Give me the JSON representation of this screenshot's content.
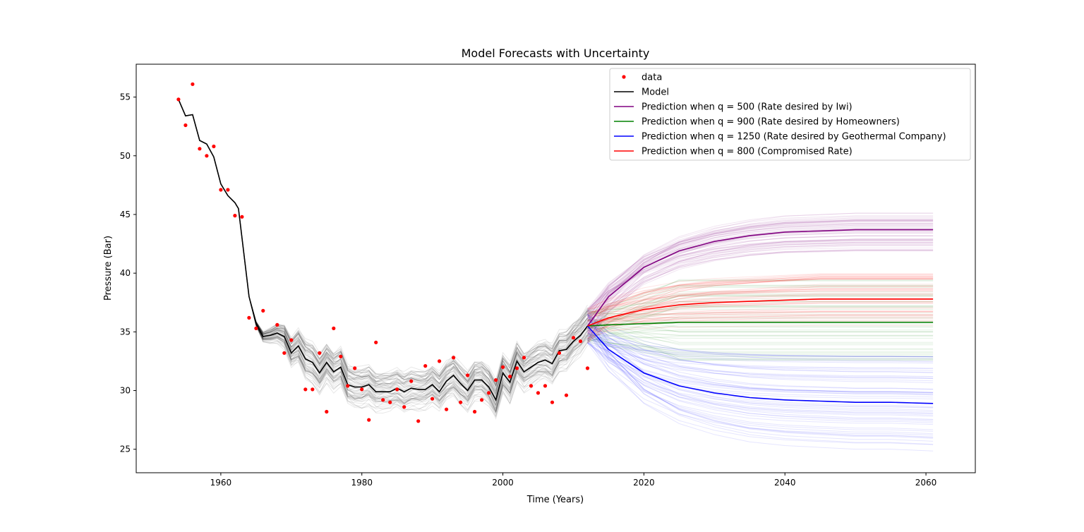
{
  "chart_data": {
    "type": "line",
    "title": "Model Forecasts with Uncertainty",
    "xlabel": "Time (Years)",
    "ylabel": "Pressure (Bar)",
    "xlim": [
      1948,
      2067
    ],
    "ylim": [
      23,
      57.8
    ],
    "x_ticks": [
      1960,
      1980,
      2000,
      2020,
      2040,
      2060
    ],
    "y_ticks": [
      25,
      30,
      35,
      40,
      45,
      50,
      55
    ],
    "grid": false,
    "legend_position": "top-right",
    "legend": [
      {
        "label": "data",
        "color": "#ff0000",
        "marker": "dot"
      },
      {
        "label": "Model",
        "color": "#000000",
        "marker": "line"
      },
      {
        "label": "Prediction when q = 500 (Rate desired by Iwi)",
        "color": "#800080",
        "marker": "line"
      },
      {
        "label": "Prediction when q = 900 (Rate desired by Homeowners)",
        "color": "#008000",
        "marker": "line"
      },
      {
        "label": "Prediction when q = 1250 (Rate desired by Geothermal Company)",
        "color": "#0000ff",
        "marker": "line"
      },
      {
        "label": "Prediction when q = 800 (Compromised Rate)",
        "color": "#ff0000",
        "marker": "line"
      }
    ],
    "data_points": {
      "name": "data",
      "color": "#ff0000",
      "x": [
        1954,
        1955,
        1956,
        1957,
        1958,
        1959,
        1960,
        1961,
        1962,
        1963,
        1964,
        1965,
        1966,
        1968,
        1969,
        1970,
        1972,
        1973,
        1974,
        1975,
        1976,
        1977,
        1978,
        1979,
        1980,
        1981,
        1982,
        1983,
        1984,
        1985,
        1986,
        1987,
        1988,
        1989,
        1990,
        1991,
        1992,
        1993,
        1994,
        1995,
        1996,
        1997,
        1998,
        1999,
        2000,
        2001,
        2002,
        2003,
        2004,
        2005,
        2006,
        2007,
        2008,
        2009,
        2010,
        2011,
        2012
      ],
      "y": [
        54.8,
        52.6,
        56.1,
        50.6,
        50.0,
        50.8,
        47.1,
        47.1,
        44.9,
        44.8,
        36.2,
        35.3,
        36.8,
        35.6,
        33.2,
        34.3,
        30.1,
        30.1,
        33.2,
        28.2,
        35.3,
        32.9,
        30.4,
        31.9,
        30.1,
        27.5,
        34.1,
        29.2,
        29.0,
        30.1,
        28.6,
        30.8,
        27.4,
        32.1,
        29.3,
        32.5,
        28.4,
        32.8,
        29.0,
        31.3,
        28.2,
        29.2,
        29.8,
        30.9,
        32.0,
        31.2,
        31.9,
        32.8,
        30.4,
        29.8,
        30.4,
        29.0,
        33.2,
        29.6,
        34.5,
        34.2,
        31.9
      ]
    },
    "model": {
      "name": "Model",
      "color": "#000000",
      "x": [
        1954,
        1955,
        1956,
        1957,
        1958,
        1959,
        1960,
        1961,
        1962,
        1962.5,
        1963,
        1964,
        1965,
        1966,
        1967,
        1968,
        1969,
        1970,
        1971,
        1972,
        1973,
        1974,
        1975,
        1976,
        1977,
        1978,
        1979,
        1980,
        1981,
        1982,
        1983,
        1984,
        1985,
        1986,
        1987,
        1988,
        1989,
        1990,
        1991,
        1992,
        1993,
        1994,
        1995,
        1996,
        1997,
        1998,
        1999,
        2000,
        2001,
        2002,
        2003,
        2004,
        2005,
        2006,
        2007,
        2008,
        2009,
        2010,
        2011,
        2012
      ],
      "y": [
        54.8,
        53.4,
        53.5,
        51.3,
        51.0,
        49.9,
        47.6,
        46.6,
        46.0,
        45.5,
        43.0,
        38.0,
        35.7,
        34.6,
        34.7,
        34.9,
        34.6,
        33.2,
        33.8,
        32.7,
        32.4,
        31.5,
        32.4,
        31.6,
        32.0,
        30.5,
        30.3,
        30.3,
        30.5,
        29.9,
        29.9,
        29.9,
        30.2,
        29.9,
        30.2,
        30.1,
        30.1,
        30.5,
        29.9,
        30.8,
        31.3,
        30.6,
        30.0,
        30.9,
        30.9,
        30.3,
        29.2,
        31.5,
        30.7,
        32.5,
        31.6,
        32.0,
        32.4,
        32.6,
        32.3,
        33.4,
        33.5,
        34.2,
        34.7,
        35.5
      ]
    },
    "forecast_start": 2012,
    "forecast_end": 2061,
    "series": [
      {
        "name": "Prediction when q = 500 (Rate desired by Iwi)",
        "color": "#800080",
        "x": [
          2012,
          2015,
          2020,
          2025,
          2030,
          2035,
          2040,
          2045,
          2050,
          2055,
          2061
        ],
        "y": [
          35.5,
          38.0,
          40.5,
          41.9,
          42.7,
          43.2,
          43.5,
          43.6,
          43.7,
          43.7,
          43.7
        ]
      },
      {
        "name": "Prediction when q = 900 (Rate desired by Homeowners)",
        "color": "#008000",
        "x": [
          2012,
          2015,
          2020,
          2025,
          2030,
          2035,
          2040,
          2045,
          2050,
          2055,
          2061
        ],
        "y": [
          35.5,
          35.6,
          35.7,
          35.8,
          35.8,
          35.8,
          35.8,
          35.8,
          35.8,
          35.8,
          35.8
        ]
      },
      {
        "name": "Prediction when q = 1250 (Rate desired by Geothermal Company)",
        "color": "#0000ff",
        "x": [
          2012,
          2015,
          2020,
          2025,
          2030,
          2035,
          2040,
          2045,
          2050,
          2055,
          2061
        ],
        "y": [
          35.5,
          33.5,
          31.5,
          30.4,
          29.8,
          29.4,
          29.2,
          29.1,
          29.0,
          29.0,
          28.9
        ]
      },
      {
        "name": "Prediction when q = 800 (Compromised Rate)",
        "color": "#ff0000",
        "x": [
          2012,
          2015,
          2020,
          2025,
          2030,
          2035,
          2040,
          2045,
          2050,
          2055,
          2061
        ],
        "y": [
          35.5,
          36.2,
          36.9,
          37.3,
          37.5,
          37.6,
          37.7,
          37.8,
          37.8,
          37.8,
          37.8
        ]
      }
    ],
    "forecast_spread_end": {
      "purple": [
        41.8,
        45.2
      ],
      "green": [
        32.5,
        39.5
      ],
      "blue": [
        24.8,
        33.2
      ],
      "red": [
        35.5,
        40.0
      ]
    }
  }
}
